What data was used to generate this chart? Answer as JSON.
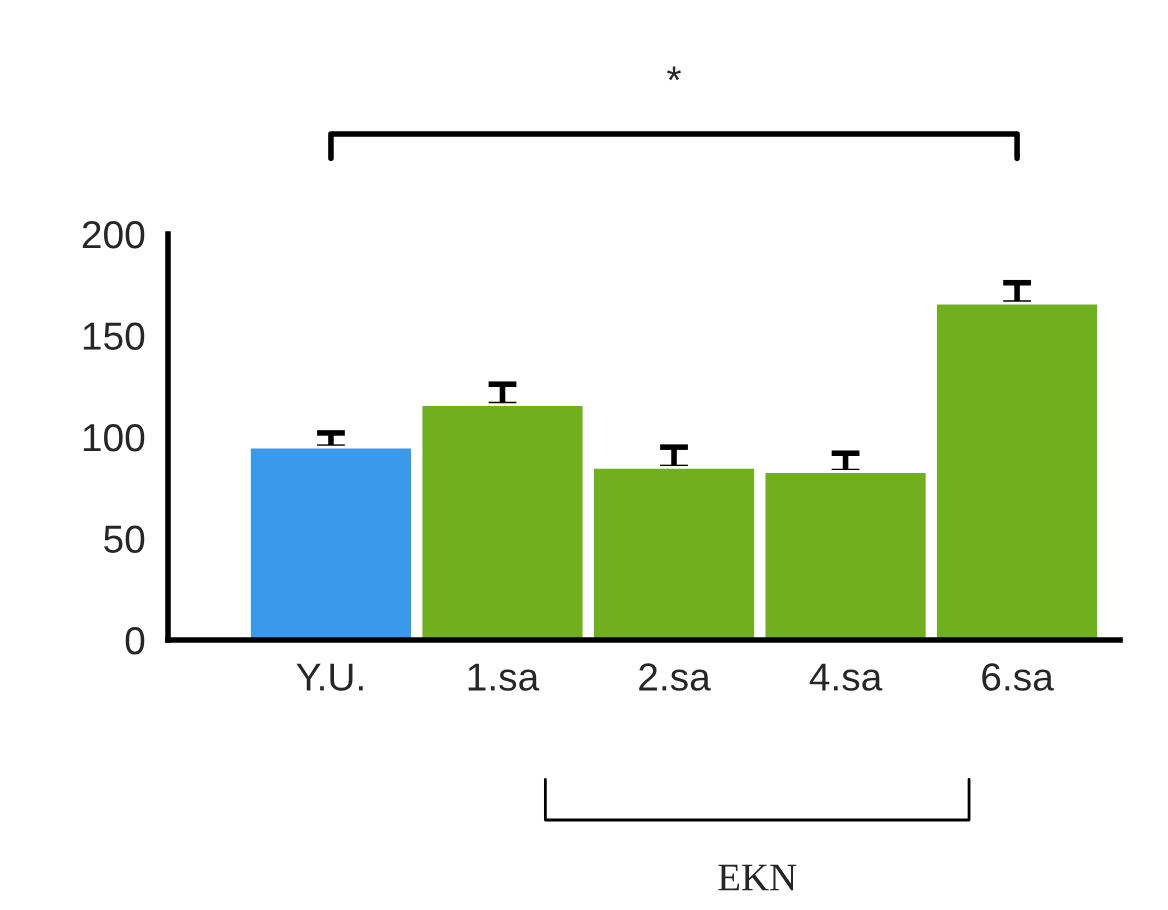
{
  "chart_data": {
    "type": "bar",
    "categories": [
      "Y.U.",
      "1.sa",
      "2.sa",
      "4.sa",
      "6.sa"
    ],
    "values": [
      95,
      116,
      85,
      83,
      166
    ],
    "errors": [
      7,
      10,
      10,
      9,
      10
    ],
    "colors": [
      "#3b99ec",
      "#70b01e",
      "#70b01e",
      "#70b01e",
      "#70b01e"
    ],
    "ylim": [
      0,
      200
    ],
    "yticks": [
      0,
      50,
      100,
      150,
      200
    ],
    "annotations": [
      "*",
      "EKN"
    ],
    "grid": false,
    "legend": false
  }
}
